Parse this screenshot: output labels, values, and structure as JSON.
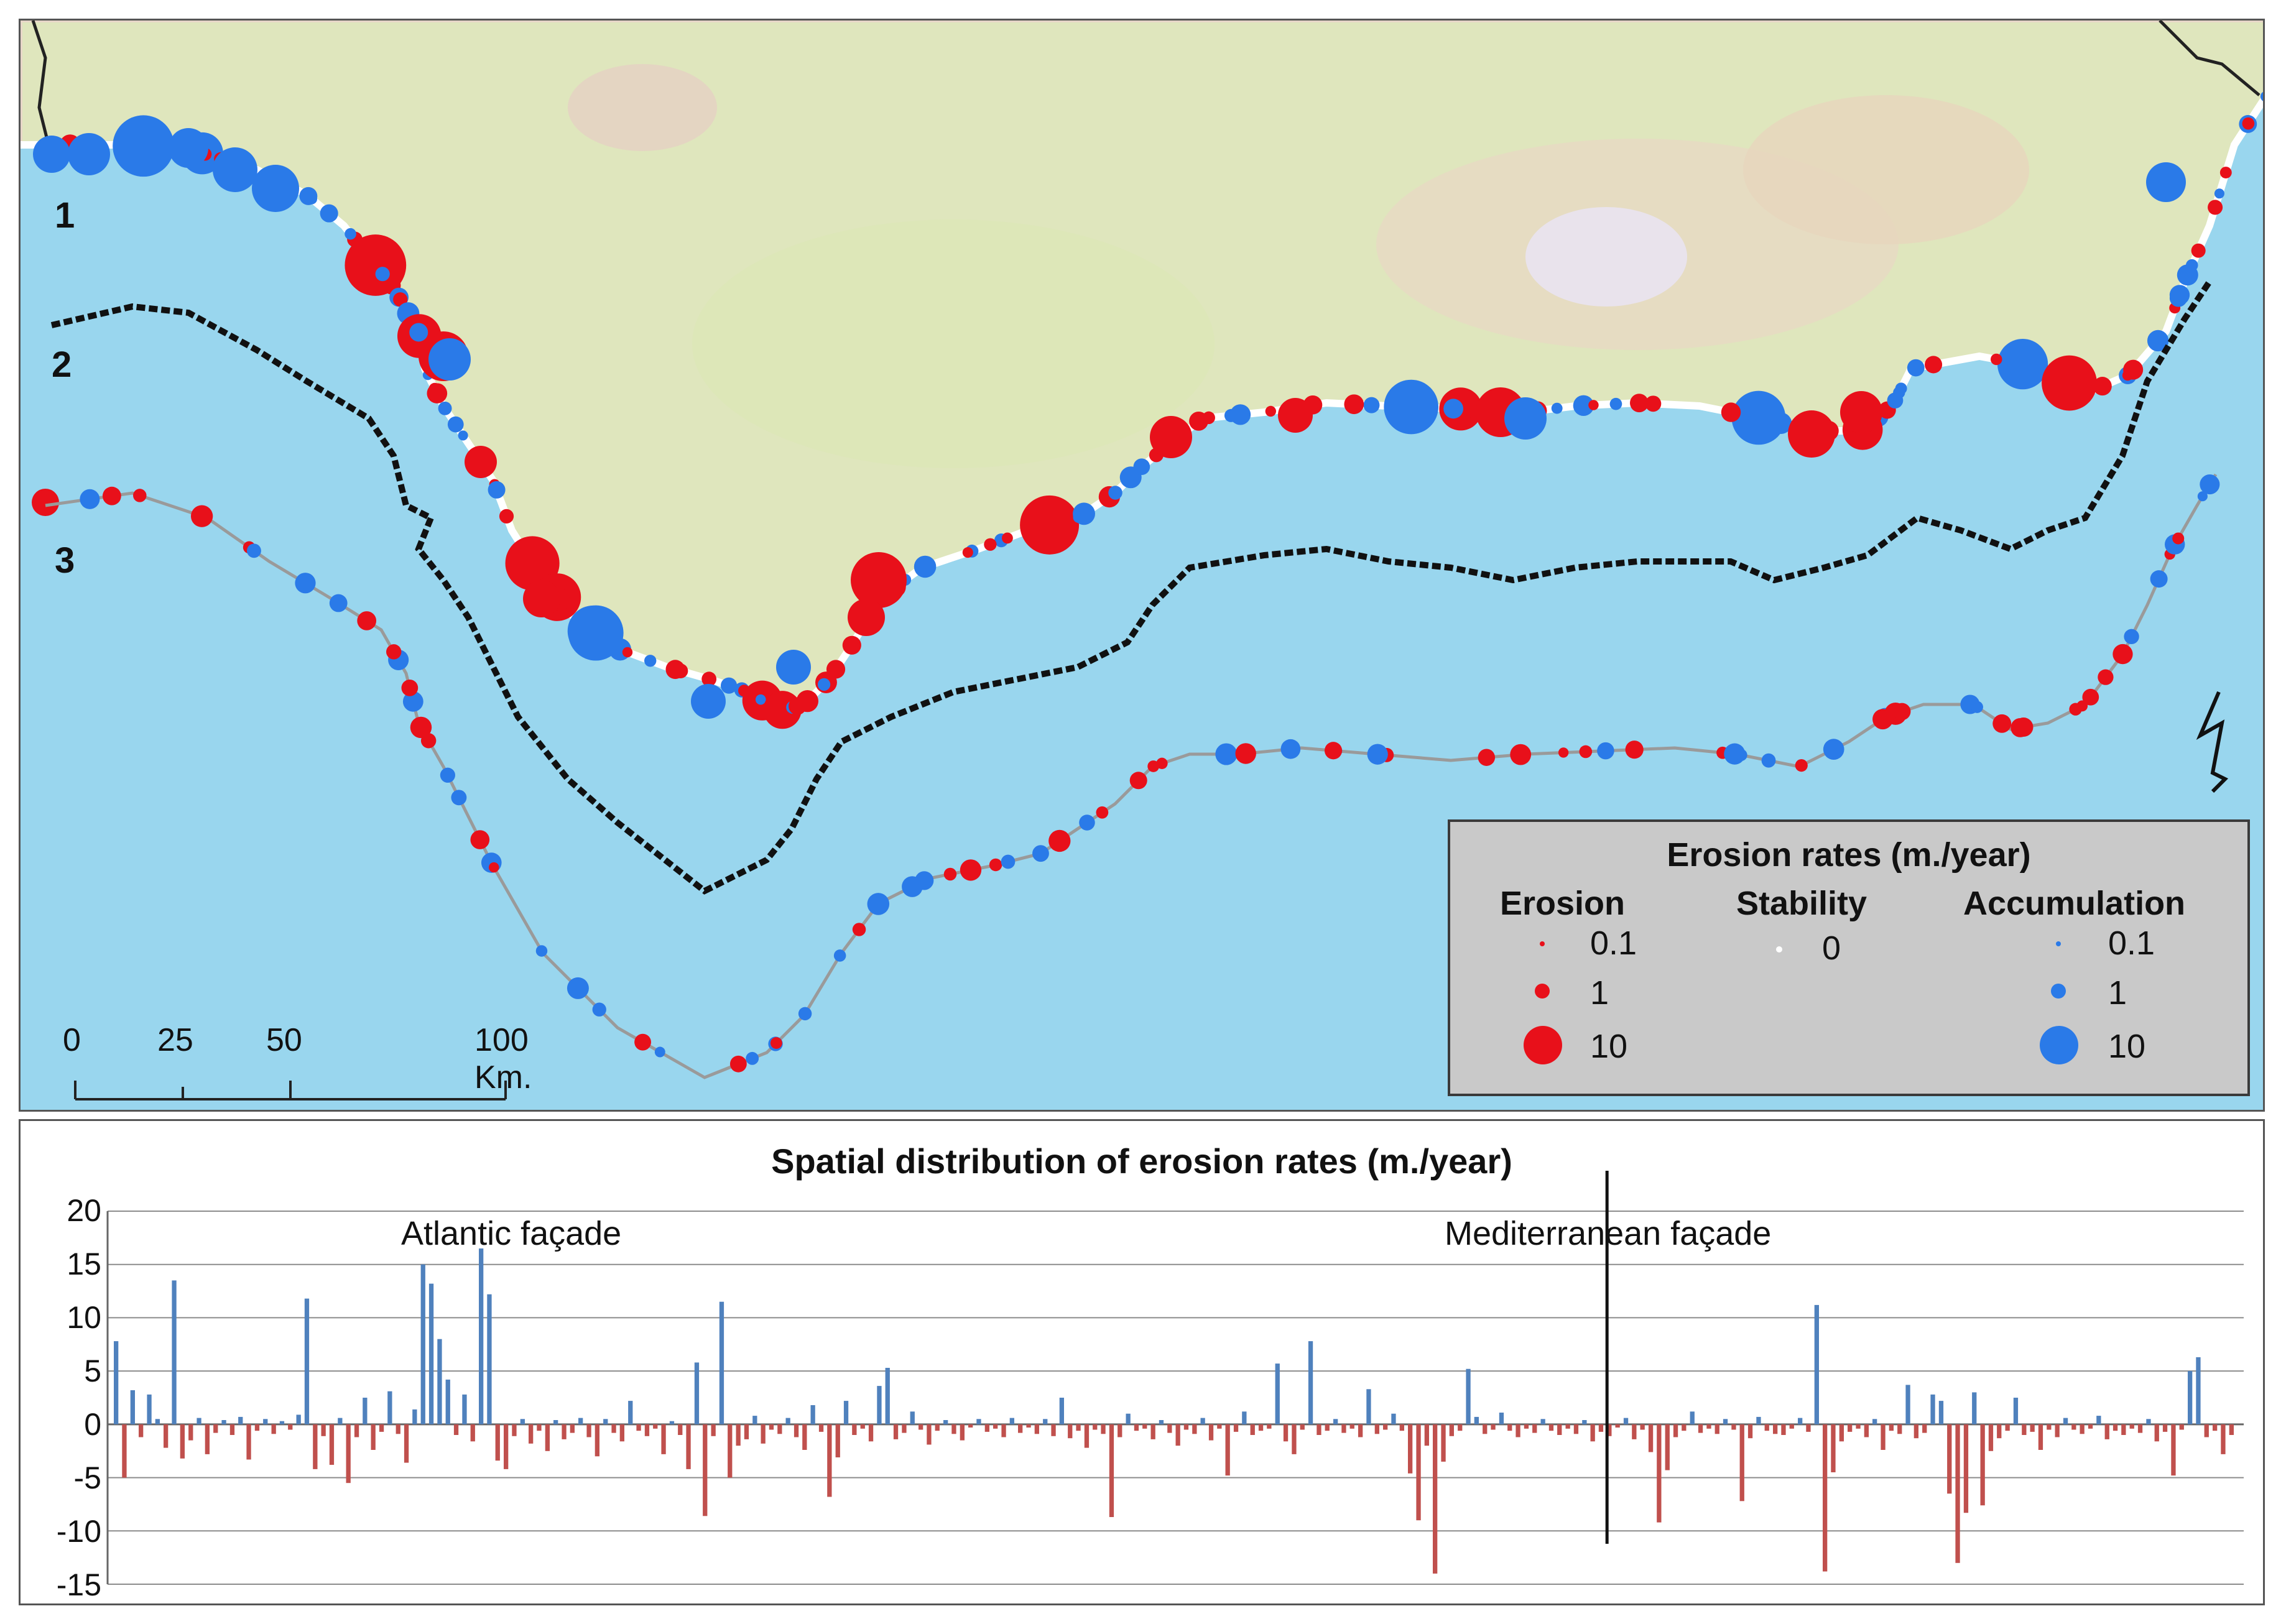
{
  "section_labels": [
    "1",
    "2",
    "3"
  ],
  "legend": {
    "title": "Erosion rates (m./year)",
    "columns": [
      {
        "heading": "Erosion",
        "color": "#e8101a",
        "values": [
          "0.1",
          "1",
          "10"
        ]
      },
      {
        "heading": "Stability",
        "color": "#ffffff",
        "values": [
          "0"
        ]
      },
      {
        "heading": "Accumulation",
        "color": "#2a7ae8",
        "values": [
          "0.1",
          "1",
          "10"
        ]
      }
    ]
  },
  "scale_bar": {
    "labels": [
      "0",
      "25",
      "50",
      "100 Km."
    ]
  },
  "colors": {
    "sea": "#99d6ee",
    "land": "#d9e4b8",
    "erosion": "#e8101a",
    "accumulation": "#2a7ae8",
    "bar_positive": "#4f81bd",
    "bar_negative": "#c0504d"
  },
  "chart_data": {
    "type": "bar",
    "title": "Spatial distribution of erosion rates (m./year)",
    "ylim": [
      -15,
      20
    ],
    "yticks": [
      20,
      15,
      10,
      5,
      0,
      -5,
      -10,
      -15
    ],
    "annotations": [
      "Atlantic façade",
      "Mediterranean façade"
    ],
    "divider_index": 180,
    "values": [
      7.8,
      -5.0,
      3.2,
      -1.2,
      2.8,
      0.5,
      -2.2,
      13.5,
      -3.2,
      -1.5,
      0.6,
      -2.8,
      -0.8,
      0.4,
      -1.0,
      0.7,
      -3.3,
      -0.6,
      0.5,
      -0.9,
      0.3,
      -0.5,
      0.9,
      11.8,
      -4.2,
      -1.1,
      -3.8,
      0.6,
      -5.5,
      -1.2,
      2.5,
      -2.4,
      -0.7,
      3.1,
      -0.9,
      -3.6,
      1.4,
      15.0,
      13.2,
      8.0,
      4.2,
      -1.0,
      2.8,
      -1.6,
      16.5,
      12.2,
      -3.4,
      -4.2,
      -1.1,
      0.5,
      -1.8,
      -0.6,
      -2.5,
      0.4,
      -1.4,
      -0.8,
      0.6,
      -1.2,
      -3.0,
      0.5,
      -0.8,
      -1.6,
      2.2,
      -0.6,
      -1.1,
      -0.4,
      -2.8,
      0.3,
      -1.0,
      -4.2,
      5.8,
      -8.6,
      -1.1,
      11.5,
      -5.0,
      -2.0,
      -1.4,
      0.8,
      -1.8,
      -0.5,
      -0.9,
      0.6,
      -1.2,
      -2.4,
      1.8,
      -0.7,
      -6.8,
      -3.1,
      2.2,
      -1.0,
      -0.4,
      -1.6,
      3.6,
      5.3,
      -1.4,
      -0.8,
      1.2,
      -0.5,
      -1.9,
      -0.6,
      0.4,
      -0.9,
      -1.5,
      -0.3,
      0.5,
      -0.7,
      -0.4,
      -1.2,
      0.6,
      -0.8,
      -0.3,
      -0.9,
      0.5,
      -1.1,
      2.5,
      -1.3,
      -0.6,
      -2.2,
      -0.5,
      -0.9,
      -8.7,
      -1.2,
      1.0,
      -0.6,
      -0.4,
      -1.4,
      0.4,
      -0.8,
      -2.0,
      -0.5,
      -0.9,
      0.6,
      -1.5,
      -0.4,
      -4.8,
      -0.7,
      1.2,
      -1.0,
      -0.6,
      -0.4,
      5.7,
      -1.6,
      -2.8,
      -0.5,
      7.8,
      -1.0,
      -0.6,
      0.5,
      -0.8,
      -0.4,
      -1.2,
      3.3,
      -0.9,
      -0.5,
      1.0,
      -0.6,
      -4.6,
      -9.0,
      -2.0,
      -14.0,
      -3.5,
      -1.1,
      -0.6,
      5.2,
      0.7,
      -0.9,
      -0.5,
      1.1,
      -0.6,
      -1.2,
      -0.4,
      -0.8,
      0.5,
      -0.6,
      -1.0,
      -0.4,
      -0.9,
      0.4,
      -1.6,
      -0.7,
      -1.1,
      -0.3,
      0.6,
      -1.4,
      -0.5,
      -2.6,
      -9.2,
      -4.3,
      -1.2,
      -0.6,
      1.2,
      -0.8,
      -0.4,
      -0.9,
      0.5,
      -0.5,
      -7.2,
      -1.3,
      0.7,
      -0.6,
      -0.9,
      -1.0,
      -0.4,
      0.6,
      -0.7,
      11.2,
      -13.8,
      -4.5,
      -1.6,
      -0.7,
      -0.4,
      -1.2,
      0.5,
      -2.4,
      -0.6,
      -0.9,
      3.7,
      -1.3,
      -0.8,
      2.8,
      2.2,
      -6.5,
      -13.0,
      -8.3,
      3.0,
      -7.6,
      -2.5,
      -1.3,
      -0.6,
      2.5,
      -1.0,
      -0.7,
      -2.4,
      -0.5,
      -1.2,
      0.6,
      -0.5,
      -0.9,
      -0.4,
      0.8,
      -1.4,
      -0.6,
      -1.0,
      -0.4,
      -0.8,
      0.5,
      -1.6,
      -0.7,
      -4.8,
      -0.5,
      5.0,
      6.3,
      -1.2,
      -0.6,
      -2.8,
      -1.0
    ]
  }
}
